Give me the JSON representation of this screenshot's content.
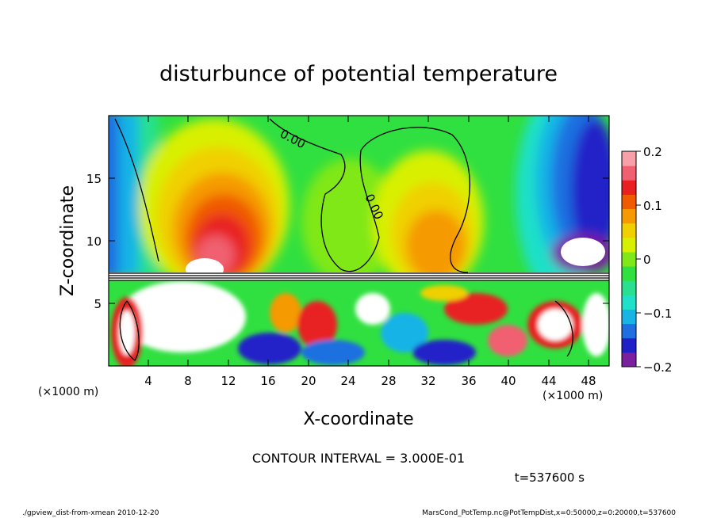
{
  "chart_data": {
    "type": "heatmap",
    "title": "disturbunce of potential temperature",
    "xlabel": "X-coordinate",
    "ylabel": "Z-coordinate",
    "x_unit_left": "(×1000 m)",
    "x_unit_right": "(×1000 m)",
    "xlim": [
      0,
      50
    ],
    "ylim": [
      0,
      20
    ],
    "x_ticks": [
      "4",
      "8",
      "12",
      "16",
      "20",
      "24",
      "28",
      "32",
      "36",
      "40",
      "44",
      "48"
    ],
    "y_ticks": [
      "5",
      "10",
      "15"
    ],
    "colorbar": {
      "range": [
        -0.2,
        0.2
      ],
      "ticks": [
        "0.2",
        "0.1",
        "0",
        "−0.1",
        "−0.2"
      ],
      "colors": [
        "#7a1fa0",
        "#2020c8",
        "#1f6fe0",
        "#19b4e6",
        "#1fe0c8",
        "#28e090",
        "#30e040",
        "#80e818",
        "#d8f000",
        "#f0d000",
        "#f59a00",
        "#f05a00",
        "#e82020",
        "#f06070",
        "#f8a0a8"
      ]
    },
    "contour_labels": [
      "0.00",
      "0.00"
    ],
    "contour_interval_text": "CONTOUR INTERVAL = 3.000E-01",
    "time_text": "t=537600 s"
  },
  "footer": {
    "left": "./gpview_dist-from-xmean  2010-12-20",
    "right": "MarsCond_PotTemp.nc@PotTempDist,x=0:50000,z=0:20000,t=537600"
  }
}
